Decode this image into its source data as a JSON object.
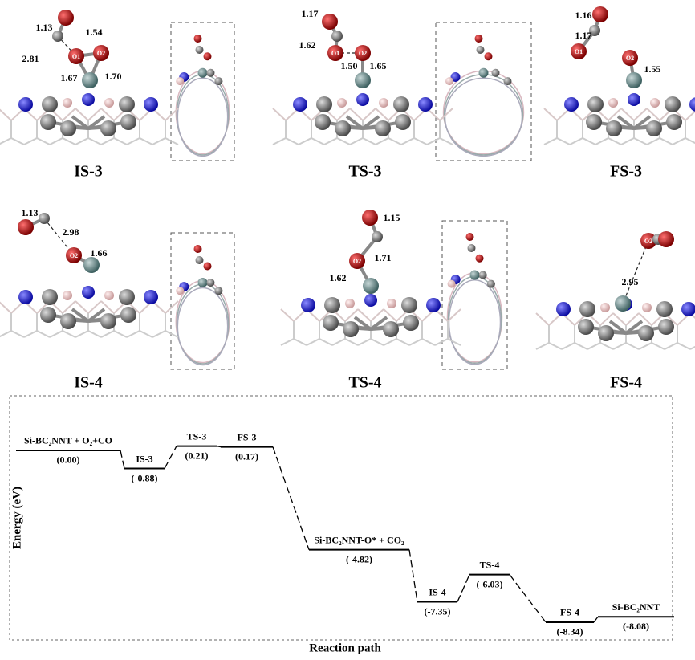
{
  "structures": [
    {
      "label": "IS-3",
      "atom_labels": [
        "O1",
        "O2"
      ],
      "distances": [
        "1.13",
        "2.81",
        "1.54",
        "1.67",
        "1.70"
      ]
    },
    {
      "label": "TS-3",
      "atom_labels": [
        "O1",
        "O2"
      ],
      "distances": [
        "1.17",
        "1.62",
        "1.50",
        "1.65"
      ]
    },
    {
      "label": "FS-3",
      "atom_labels": [
        "O1",
        "O2"
      ],
      "distances": [
        "1.16",
        "1.17",
        "1.55"
      ]
    },
    {
      "label": "IS-4",
      "atom_labels": [
        "O2"
      ],
      "distances": [
        "1.13",
        "2.98",
        "1.66"
      ]
    },
    {
      "label": "TS-4",
      "atom_labels": [
        "O2"
      ],
      "distances": [
        "1.15",
        "1.71",
        "1.62"
      ]
    },
    {
      "label": "FS-4",
      "atom_labels": [
        "O2"
      ],
      "distances": [
        "2.95"
      ]
    }
  ],
  "chart_data": {
    "type": "energy-profile",
    "y_label": "Energy (eV)",
    "x_label": "Reaction path",
    "categories": [
      "Si-BC₂NNT + O₂+CO",
      "IS-3",
      "TS-3",
      "FS-3",
      "Si-BC₂NNT-O* + CO₂",
      "IS-4",
      "TS-4",
      "FS-4",
      "Si-BC₂NNT"
    ],
    "values": [
      0.0,
      -0.88,
      0.21,
      0.17,
      -4.82,
      -7.35,
      -6.03,
      -8.34,
      -8.08
    ],
    "value_labels": [
      "(0.00)",
      "(-0.88)",
      "(0.21)",
      "(0.17)",
      "(-4.82)",
      "(-7.35)",
      "(-6.03)",
      "(-8.34)",
      "(-8.08)"
    ],
    "ylim": [
      -9.2,
      2.65
    ],
    "color": "#000000"
  }
}
